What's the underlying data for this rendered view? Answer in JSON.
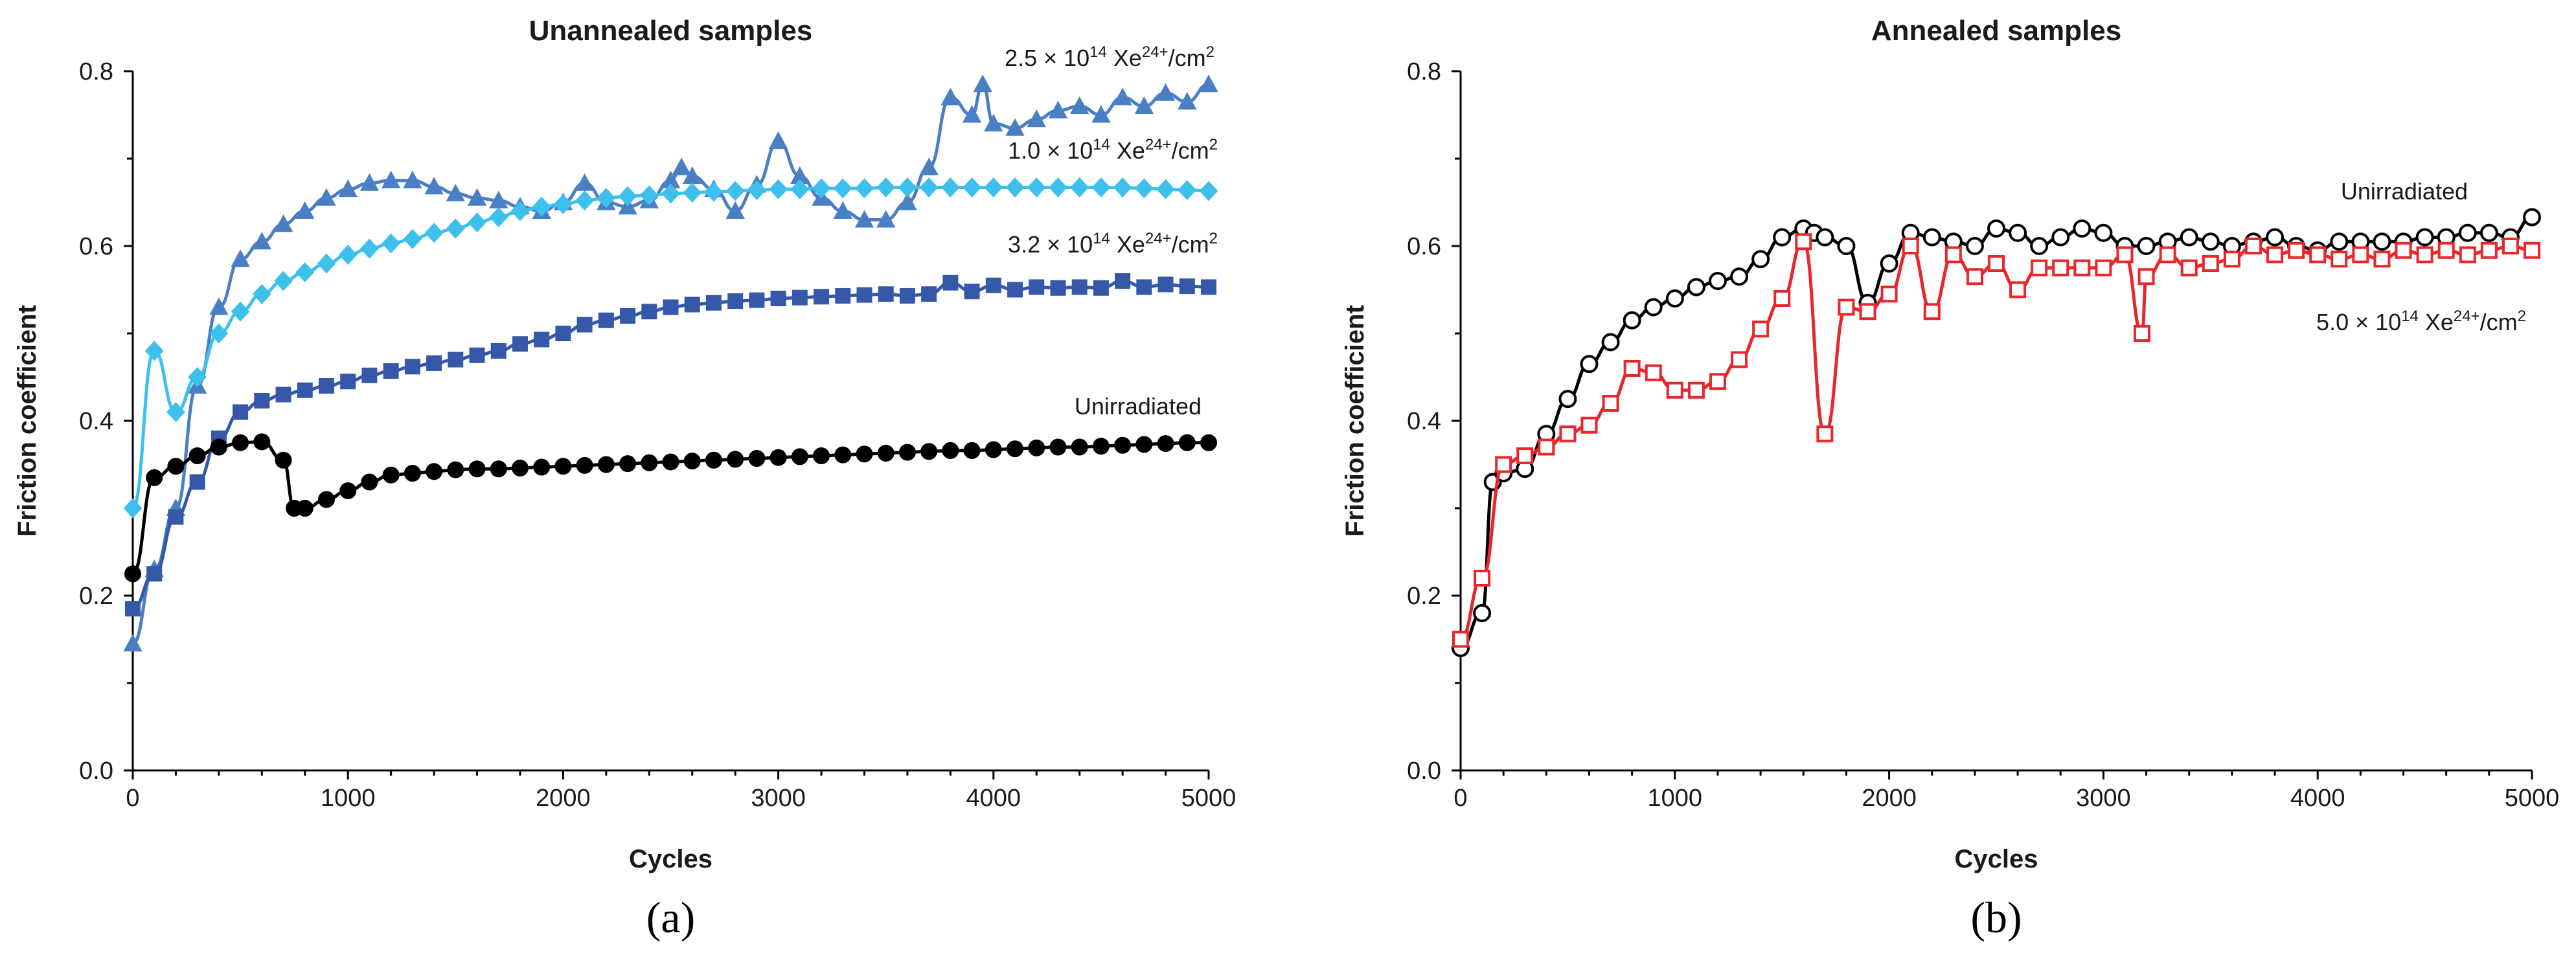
{
  "chart_data": [
    {
      "type": "line",
      "panel_label": "(a)",
      "title": "Unannealed samples",
      "xlabel": "Cycles",
      "ylabel": "Friction coefficient",
      "xlim": [
        0,
        5000
      ],
      "ylim": [
        0,
        0.8
      ],
      "xticks": [
        "0",
        "1000",
        "2000",
        "3000",
        "4000",
        "5000"
      ],
      "yticks": [
        "0.0",
        "0.2",
        "0.4",
        "0.6",
        "0.8"
      ],
      "grid": false,
      "series": [
        {
          "name": "2.5 × 10^14 Xe^24+/cm^2",
          "label_parts": {
            "mant": "2.5 × 10",
            "exp": "14",
            "ion": " Xe",
            "charge": "24+",
            "unit": "/cm",
            "pow": "2"
          },
          "color": "#4a7fc4",
          "marker": "triangle",
          "marker_fill": "filled",
          "x": [
            0,
            100,
            200,
            300,
            400,
            500,
            600,
            700,
            800,
            900,
            1000,
            1100,
            1200,
            1300,
            1400,
            1500,
            1600,
            1700,
            1800,
            1900,
            2000,
            2100,
            2200,
            2300,
            2400,
            2500,
            2550,
            2600,
            2700,
            2800,
            2900,
            3000,
            3100,
            3200,
            3300,
            3400,
            3500,
            3600,
            3700,
            3800,
            3900,
            3950,
            4000,
            4100,
            4200,
            4300,
            4400,
            4500,
            4600,
            4700,
            4800,
            4900,
            5000
          ],
          "y": [
            0.145,
            0.23,
            0.3,
            0.44,
            0.53,
            0.585,
            0.605,
            0.625,
            0.64,
            0.655,
            0.665,
            0.672,
            0.675,
            0.675,
            0.668,
            0.66,
            0.655,
            0.652,
            0.645,
            0.64,
            0.65,
            0.672,
            0.65,
            0.645,
            0.652,
            0.675,
            0.69,
            0.68,
            0.665,
            0.64,
            0.67,
            0.72,
            0.68,
            0.655,
            0.64,
            0.63,
            0.63,
            0.65,
            0.69,
            0.77,
            0.75,
            0.785,
            0.74,
            0.735,
            0.745,
            0.755,
            0.76,
            0.75,
            0.77,
            0.76,
            0.775,
            0.765,
            0.785
          ]
        },
        {
          "name": "1.0 × 10^14 Xe^24+/cm^2",
          "label_parts": {
            "mant": "1.0 × 10",
            "exp": "14",
            "ion": " Xe",
            "charge": "24+",
            "unit": "/cm",
            "pow": "2"
          },
          "color": "#3ec0ec",
          "marker": "diamond",
          "marker_fill": "filled",
          "x": [
            0,
            100,
            200,
            300,
            400,
            500,
            600,
            700,
            800,
            900,
            1000,
            1100,
            1200,
            1300,
            1400,
            1500,
            1600,
            1700,
            1800,
            1900,
            2000,
            2100,
            2200,
            2300,
            2400,
            2500,
            2600,
            2700,
            2800,
            2900,
            3000,
            3100,
            3200,
            3300,
            3400,
            3500,
            3600,
            3700,
            3800,
            3900,
            4000,
            4100,
            4200,
            4300,
            4400,
            4500,
            4600,
            4700,
            4800,
            4900,
            5000
          ],
          "y": [
            0.3,
            0.48,
            0.41,
            0.45,
            0.5,
            0.525,
            0.545,
            0.56,
            0.57,
            0.58,
            0.59,
            0.597,
            0.603,
            0.608,
            0.615,
            0.62,
            0.627,
            0.633,
            0.64,
            0.645,
            0.648,
            0.652,
            0.655,
            0.657,
            0.658,
            0.66,
            0.661,
            0.662,
            0.663,
            0.664,
            0.665,
            0.665,
            0.666,
            0.666,
            0.666,
            0.667,
            0.667,
            0.667,
            0.667,
            0.667,
            0.667,
            0.667,
            0.667,
            0.667,
            0.667,
            0.667,
            0.667,
            0.666,
            0.665,
            0.664,
            0.663
          ]
        },
        {
          "name": "3.2 × 10^14 Xe^24+/cm^2",
          "label_parts": {
            "mant": "3.2 × 10",
            "exp": "14",
            "ion": " Xe",
            "charge": "24+",
            "unit": "/cm",
            "pow": "2"
          },
          "color": "#3558a8",
          "marker": "square",
          "marker_fill": "filled",
          "x": [
            0,
            100,
            200,
            300,
            400,
            500,
            600,
            700,
            800,
            900,
            1000,
            1100,
            1200,
            1300,
            1400,
            1500,
            1600,
            1700,
            1800,
            1900,
            2000,
            2100,
            2200,
            2300,
            2400,
            2500,
            2600,
            2700,
            2800,
            2900,
            3000,
            3100,
            3200,
            3300,
            3400,
            3500,
            3600,
            3700,
            3800,
            3900,
            4000,
            4100,
            4200,
            4300,
            4400,
            4500,
            4600,
            4700,
            4800,
            4900,
            5000
          ],
          "y": [
            0.185,
            0.225,
            0.29,
            0.33,
            0.38,
            0.41,
            0.423,
            0.43,
            0.435,
            0.44,
            0.445,
            0.452,
            0.457,
            0.462,
            0.466,
            0.47,
            0.475,
            0.48,
            0.488,
            0.493,
            0.5,
            0.51,
            0.515,
            0.52,
            0.525,
            0.53,
            0.533,
            0.535,
            0.537,
            0.538,
            0.54,
            0.541,
            0.542,
            0.543,
            0.544,
            0.545,
            0.543,
            0.545,
            0.558,
            0.548,
            0.555,
            0.55,
            0.553,
            0.552,
            0.553,
            0.552,
            0.56,
            0.553,
            0.556,
            0.554,
            0.553
          ]
        },
        {
          "name": "Unirradiated",
          "label_parts": {
            "mant": "Unirradiated"
          },
          "color": "#000000",
          "marker": "circle",
          "marker_fill": "filled",
          "x": [
            0,
            100,
            200,
            300,
            400,
            500,
            600,
            700,
            750,
            800,
            900,
            1000,
            1100,
            1200,
            1300,
            1400,
            1500,
            1600,
            1700,
            1800,
            1900,
            2000,
            2100,
            2200,
            2300,
            2400,
            2500,
            2600,
            2700,
            2800,
            2900,
            3000,
            3100,
            3200,
            3300,
            3400,
            3500,
            3600,
            3700,
            3800,
            3900,
            4000,
            4100,
            4200,
            4300,
            4400,
            4500,
            4600,
            4700,
            4800,
            4900,
            5000
          ],
          "y": [
            0.225,
            0.335,
            0.348,
            0.36,
            0.37,
            0.375,
            0.376,
            0.355,
            0.3,
            0.3,
            0.31,
            0.32,
            0.33,
            0.338,
            0.34,
            0.342,
            0.344,
            0.345,
            0.345,
            0.346,
            0.347,
            0.348,
            0.349,
            0.35,
            0.351,
            0.352,
            0.353,
            0.354,
            0.355,
            0.356,
            0.357,
            0.358,
            0.359,
            0.36,
            0.361,
            0.362,
            0.363,
            0.364,
            0.365,
            0.366,
            0.366,
            0.367,
            0.368,
            0.369,
            0.37,
            0.37,
            0.371,
            0.372,
            0.373,
            0.374,
            0.375,
            0.375
          ]
        }
      ]
    },
    {
      "type": "line",
      "panel_label": "(b)",
      "title": "Annealed samples",
      "xlabel": "Cycles",
      "ylabel": "Friction coefficient",
      "xlim": [
        0,
        5000
      ],
      "ylim": [
        0,
        0.8
      ],
      "xticks": [
        "0",
        "1000",
        "2000",
        "3000",
        "4000",
        "5000"
      ],
      "yticks": [
        "0.0",
        "0.2",
        "0.4",
        "0.6",
        "0.8"
      ],
      "grid": false,
      "series": [
        {
          "name": "Unirradiated",
          "label_parts": {
            "mant": "Unirradiated"
          },
          "color": "#000000",
          "marker": "circle",
          "marker_fill": "open",
          "x": [
            0,
            100,
            150,
            200,
            300,
            400,
            500,
            600,
            700,
            800,
            900,
            1000,
            1100,
            1200,
            1300,
            1400,
            1500,
            1600,
            1650,
            1700,
            1800,
            1900,
            2000,
            2100,
            2200,
            2300,
            2400,
            2500,
            2600,
            2700,
            2800,
            2900,
            3000,
            3100,
            3200,
            3300,
            3400,
            3500,
            3600,
            3700,
            3800,
            3900,
            4000,
            4100,
            4200,
            4300,
            4400,
            4500,
            4600,
            4700,
            4800,
            4900,
            5000
          ],
          "y": [
            0.14,
            0.18,
            0.33,
            0.34,
            0.345,
            0.385,
            0.425,
            0.465,
            0.49,
            0.515,
            0.53,
            0.54,
            0.553,
            0.56,
            0.565,
            0.585,
            0.61,
            0.62,
            0.615,
            0.61,
            0.6,
            0.535,
            0.58,
            0.615,
            0.61,
            0.605,
            0.6,
            0.62,
            0.615,
            0.6,
            0.61,
            0.62,
            0.615,
            0.6,
            0.6,
            0.605,
            0.61,
            0.605,
            0.6,
            0.605,
            0.61,
            0.6,
            0.595,
            0.605,
            0.605,
            0.605,
            0.605,
            0.61,
            0.61,
            0.615,
            0.615,
            0.61,
            0.633
          ]
        },
        {
          "name": "5.0 × 10^14 Xe^24+/cm^2",
          "label_parts": {
            "mant": "5.0 × 10",
            "exp": "14",
            "ion": " Xe",
            "charge": "24+",
            "unit": "/cm",
            "pow": "2"
          },
          "color": "#e8262b",
          "marker": "square",
          "marker_fill": "open",
          "x": [
            0,
            100,
            200,
            300,
            400,
            500,
            600,
            700,
            800,
            900,
            1000,
            1100,
            1200,
            1300,
            1400,
            1500,
            1600,
            1700,
            1800,
            1900,
            2000,
            2100,
            2200,
            2300,
            2400,
            2500,
            2600,
            2700,
            2800,
            2900,
            3000,
            3100,
            3180,
            3200,
            3300,
            3400,
            3500,
            3600,
            3700,
            3800,
            3900,
            4000,
            4100,
            4200,
            4300,
            4400,
            4500,
            4600,
            4700,
            4800,
            4900,
            5000
          ],
          "y": [
            0.15,
            0.22,
            0.35,
            0.36,
            0.37,
            0.385,
            0.395,
            0.42,
            0.46,
            0.455,
            0.435,
            0.435,
            0.445,
            0.47,
            0.505,
            0.54,
            0.605,
            0.385,
            0.53,
            0.525,
            0.545,
            0.6,
            0.525,
            0.59,
            0.565,
            0.58,
            0.55,
            0.575,
            0.575,
            0.575,
            0.575,
            0.59,
            0.5,
            0.565,
            0.59,
            0.575,
            0.58,
            0.585,
            0.6,
            0.59,
            0.595,
            0.59,
            0.585,
            0.59,
            0.585,
            0.595,
            0.59,
            0.595,
            0.59,
            0.595,
            0.6,
            0.595
          ]
        }
      ]
    }
  ]
}
